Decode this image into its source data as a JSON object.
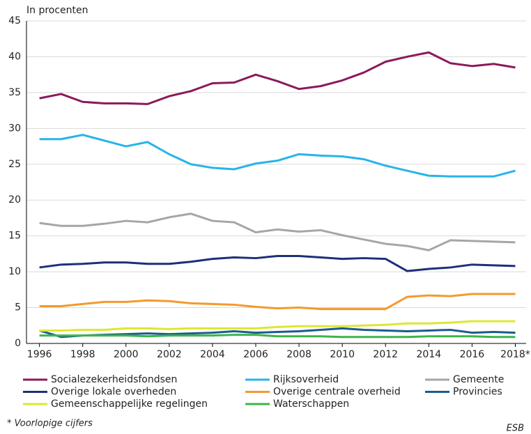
{
  "chart_data": {
    "type": "line",
    "y_label": "In procenten",
    "x": [
      1996,
      1997,
      1998,
      1999,
      2000,
      2001,
      2002,
      2003,
      2004,
      2005,
      2006,
      2007,
      2008,
      2009,
      2010,
      2011,
      2012,
      2013,
      2014,
      2015,
      2016,
      2017,
      2018
    ],
    "xlim": [
      1995.4,
      2018.5
    ],
    "xticks": [
      1996,
      1998,
      2000,
      2002,
      2004,
      2006,
      2008,
      2010,
      2012,
      2014,
      2016,
      {
        "value": 2018,
        "label": "2018*"
      }
    ],
    "ylim": [
      0,
      45
    ],
    "yticks": [
      0,
      5,
      10,
      15,
      20,
      25,
      30,
      35,
      40,
      45
    ],
    "grid": true,
    "series": [
      {
        "name": "Socialezekerheidsfondsen",
        "color": "#8b1a5a",
        "values": [
          34.2,
          34.8,
          33.7,
          33.5,
          33.5,
          33.4,
          34.5,
          35.2,
          36.3,
          36.4,
          37.5,
          36.6,
          35.5,
          35.9,
          36.7,
          37.8,
          39.3,
          40.0,
          40.6,
          39.1,
          38.7,
          39.0,
          38.5
        ]
      },
      {
        "name": "Rijksoverheid",
        "color": "#27b4e8",
        "values": [
          28.5,
          28.5,
          29.1,
          28.3,
          27.5,
          28.1,
          26.4,
          25.0,
          24.5,
          24.3,
          25.1,
          25.5,
          26.4,
          26.2,
          26.1,
          25.7,
          24.8,
          24.1,
          23.4,
          23.3,
          23.3,
          23.3,
          24.1
        ]
      },
      {
        "name": "Gemeente",
        "color": "#a6a6a6",
        "values": [
          16.8,
          16.4,
          16.4,
          16.7,
          17.1,
          16.9,
          17.6,
          18.1,
          17.1,
          16.9,
          15.5,
          15.9,
          15.6,
          15.8,
          15.1,
          14.5,
          13.9,
          13.6,
          13.0,
          14.4,
          14.3,
          14.2,
          14.1
        ]
      },
      {
        "name": "Overige lokale overheden",
        "color": "#1f2e7a",
        "values": [
          10.6,
          11.0,
          11.1,
          11.3,
          11.3,
          11.1,
          11.1,
          11.4,
          11.8,
          12.0,
          11.9,
          12.2,
          12.2,
          12.0,
          11.8,
          11.9,
          11.8,
          10.1,
          10.4,
          10.6,
          11.0,
          10.9,
          10.8
        ]
      },
      {
        "name": "Overige centrale overheid",
        "color": "#f39a2b",
        "values": [
          5.2,
          5.2,
          5.5,
          5.8,
          5.8,
          6.0,
          5.9,
          5.6,
          5.5,
          5.4,
          5.1,
          4.9,
          5.0,
          4.8,
          4.8,
          4.8,
          4.8,
          6.5,
          6.7,
          6.6,
          6.9,
          6.9,
          6.9
        ]
      },
      {
        "name": "Provincies",
        "color": "#1a5c8c",
        "values": [
          1.8,
          0.9,
          1.1,
          1.2,
          1.3,
          1.4,
          1.3,
          1.4,
          1.5,
          1.7,
          1.5,
          1.6,
          1.7,
          1.9,
          2.1,
          1.9,
          1.8,
          1.7,
          1.8,
          1.9,
          1.5,
          1.6,
          1.5
        ]
      },
      {
        "name": "Gemeenschappelijke regelingen",
        "color": "#dce832",
        "values": [
          1.8,
          1.8,
          1.9,
          1.9,
          2.1,
          2.1,
          2.0,
          2.1,
          2.1,
          2.1,
          2.1,
          2.3,
          2.4,
          2.4,
          2.4,
          2.5,
          2.6,
          2.8,
          2.8,
          2.9,
          3.1,
          3.1,
          3.1
        ]
      },
      {
        "name": "Waterschappen",
        "color": "#3cb54a",
        "values": [
          1.1,
          1.1,
          1.1,
          1.1,
          1.1,
          1.0,
          1.1,
          1.1,
          1.1,
          1.2,
          1.2,
          1.0,
          1.0,
          1.0,
          0.9,
          0.9,
          0.9,
          0.9,
          1.0,
          1.0,
          1.0,
          0.9,
          0.9
        ]
      }
    ],
    "footnote": "* Voorlopige cijfers",
    "source": "ESB"
  }
}
